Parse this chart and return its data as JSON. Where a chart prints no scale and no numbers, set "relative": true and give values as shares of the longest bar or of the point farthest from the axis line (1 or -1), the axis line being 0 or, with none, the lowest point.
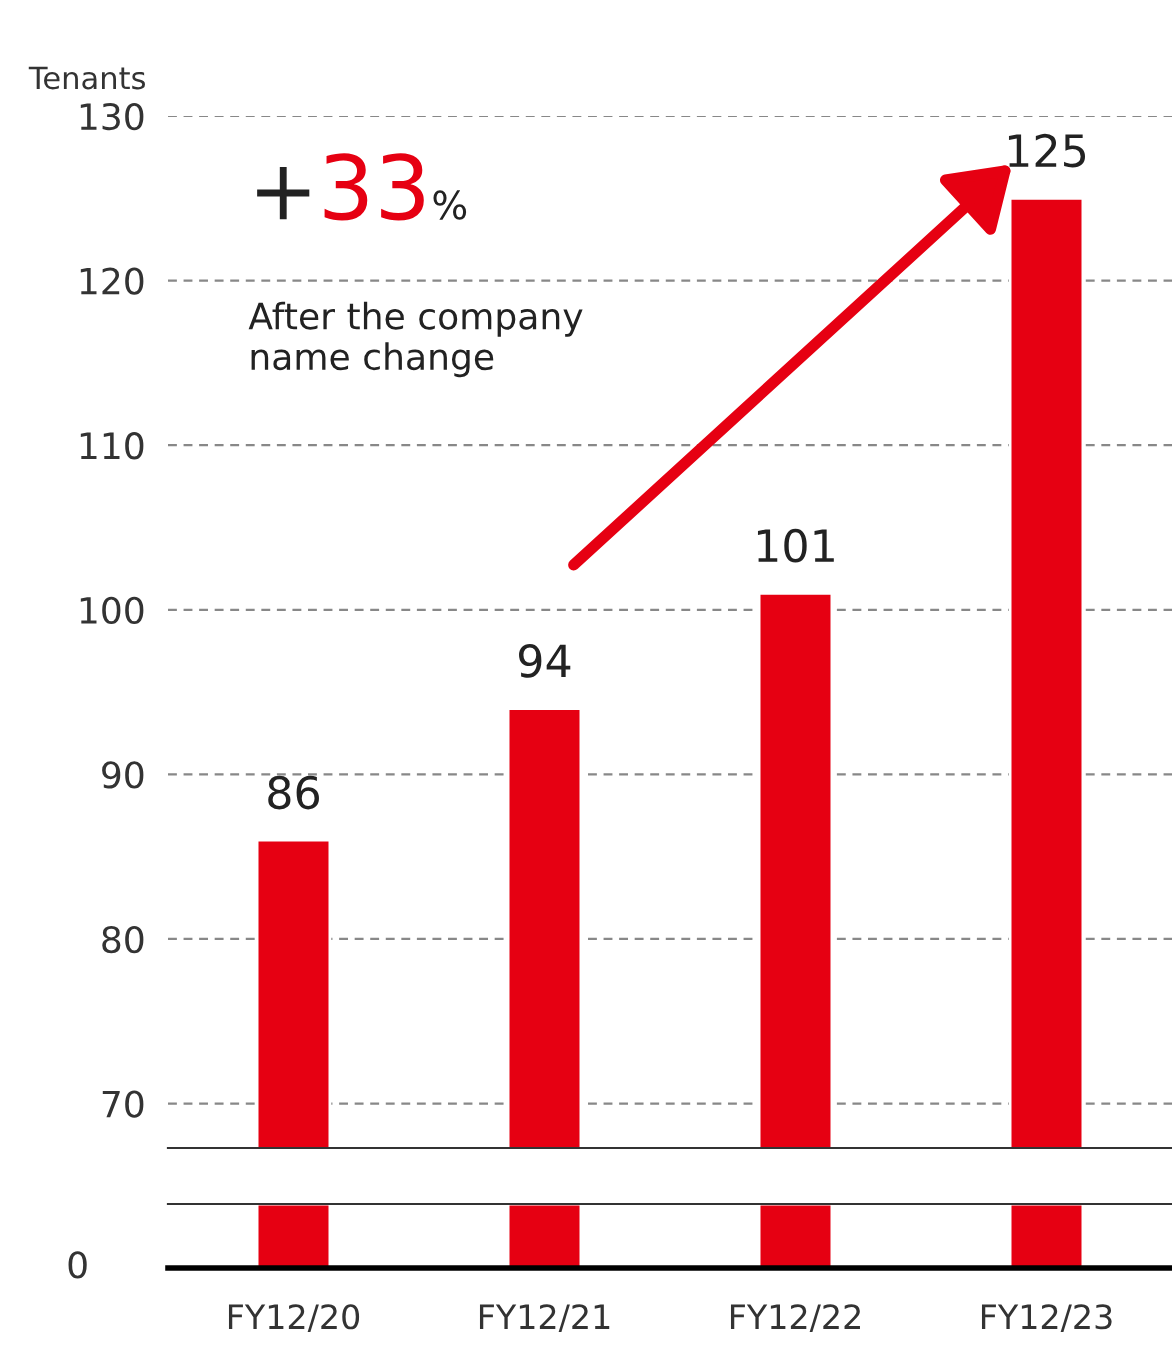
{
  "chart_data": [
    {
      "type": "bar",
      "ylabel": "Tenants",
      "categories": [
        "FY12/20",
        "FY12/21",
        "FY12/22",
        "FY12/23"
      ],
      "values": [
        86,
        94,
        101,
        125
      ],
      "color": "#e60012",
      "ylim": [
        67.3,
        130
      ],
      "yticks": [
        70,
        80,
        90,
        100,
        110,
        120,
        130
      ],
      "grid": "y",
      "data_labels": true,
      "annotations": [
        "+",
        "33",
        "%",
        "After the company\nname change"
      ]
    },
    {
      "type": "bar",
      "relative": true,
      "categories": [
        null,
        null,
        null,
        null
      ],
      "values": [
        1,
        1,
        1,
        1
      ],
      "color": "#e60012",
      "annotations": [
        "0"
      ]
    }
  ]
}
